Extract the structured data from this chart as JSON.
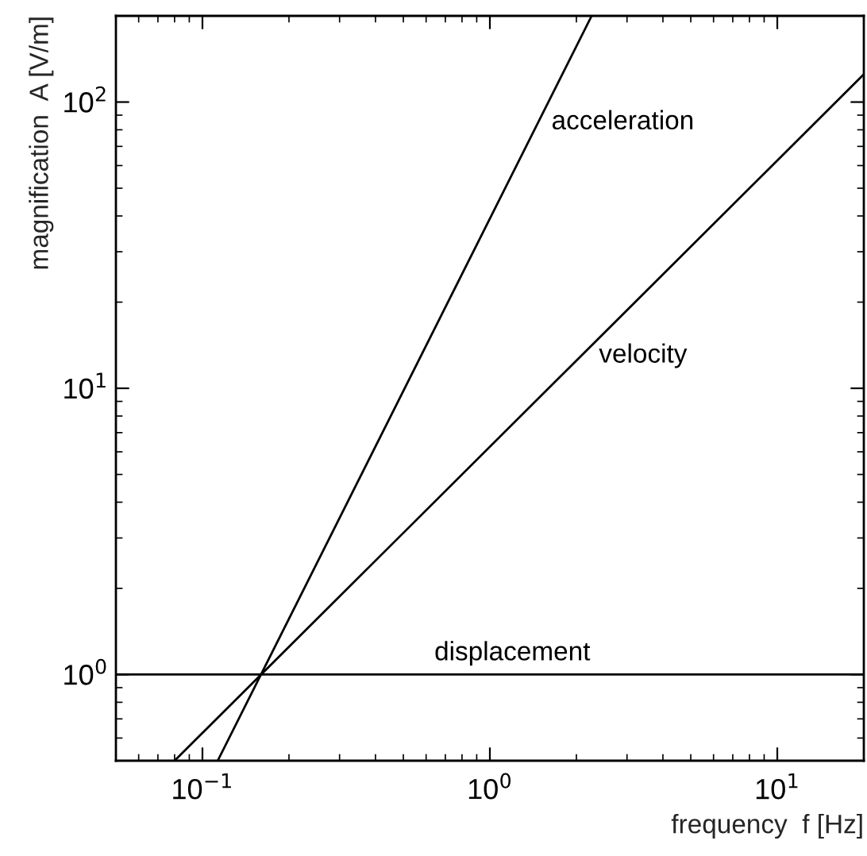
{
  "chart_data": {
    "type": "line",
    "xlabel": "frequency  f [Hz]",
    "ylabel": "magnification  A [V/m]",
    "log": "xy",
    "grid": false,
    "legend": false,
    "marker": "none",
    "line_style": "solid",
    "xlim": [
      0.05,
      20
    ],
    "ylim": [
      0.5,
      200
    ],
    "xticks": [
      {
        "value": 0.1,
        "label": "10$^{−1}$"
      },
      {
        "value": 1,
        "label": "10$^{0}$"
      },
      {
        "value": 10,
        "label": "10$^{1}$"
      }
    ],
    "yticks": [
      {
        "value": 1,
        "label": "10$^{0}$"
      },
      {
        "value": 10,
        "label": "10$^{1}$"
      },
      {
        "value": 100,
        "label": "10$^{2}$"
      }
    ],
    "series": [
      {
        "name": "displacement",
        "color": "#000000",
        "x": [
          0.05,
          20
        ],
        "values": [
          1,
          1
        ]
      },
      {
        "name": "velocity",
        "color": "#000000",
        "x": [
          0.08,
          20
        ],
        "values": [
          0.5,
          125
        ]
      },
      {
        "name": "acceleration",
        "color": "#000000",
        "x": [
          0.113,
          2.26
        ],
        "values": [
          0.5,
          200
        ]
      }
    ]
  }
}
